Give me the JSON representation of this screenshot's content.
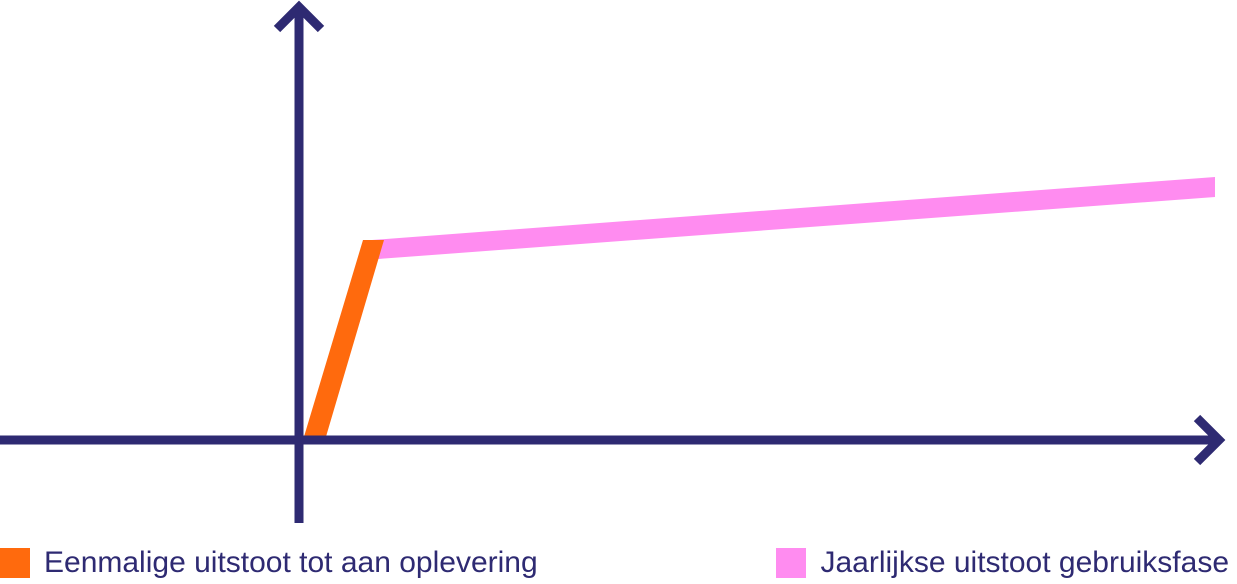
{
  "colors": {
    "axis": "#2e2a72",
    "embodied": "#ff6a0d",
    "operational": "#ff8cf0"
  },
  "legend": {
    "embodied_label": "Eenmalige uitstoot tot aan oplevering",
    "operational_label": "Jaarlijkse uitstoot gebruiksfase"
  }
}
